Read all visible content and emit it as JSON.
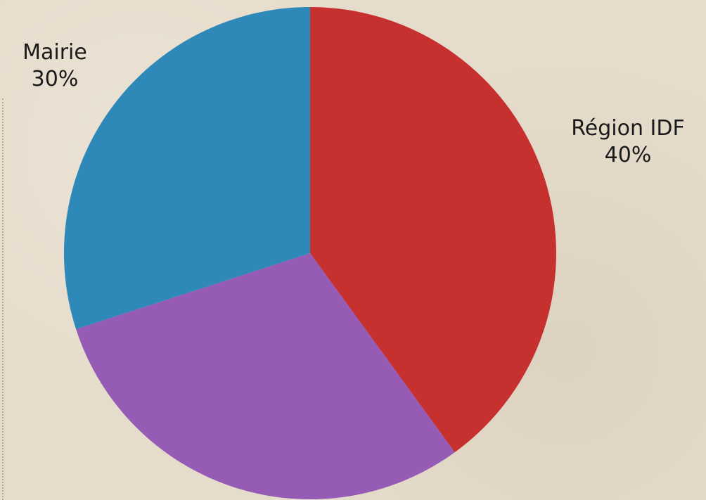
{
  "chart_data": {
    "type": "pie",
    "title": "",
    "slices": [
      {
        "name": "Région IDF",
        "value": 40,
        "percent_label": "40%",
        "color": "#c6302e",
        "labeled": true
      },
      {
        "name": "",
        "value": 30,
        "percent_label": "",
        "color": "#955bb5",
        "labeled": false
      },
      {
        "name": "Mairie",
        "value": 30,
        "percent_label": "30%",
        "color": "#2e89b8",
        "labeled": true
      }
    ],
    "start_angle_deg": 0,
    "direction": "clockwise",
    "legend": "none"
  },
  "colors": {
    "background": "#e6dccb",
    "label_text": "#1a1a1a"
  }
}
